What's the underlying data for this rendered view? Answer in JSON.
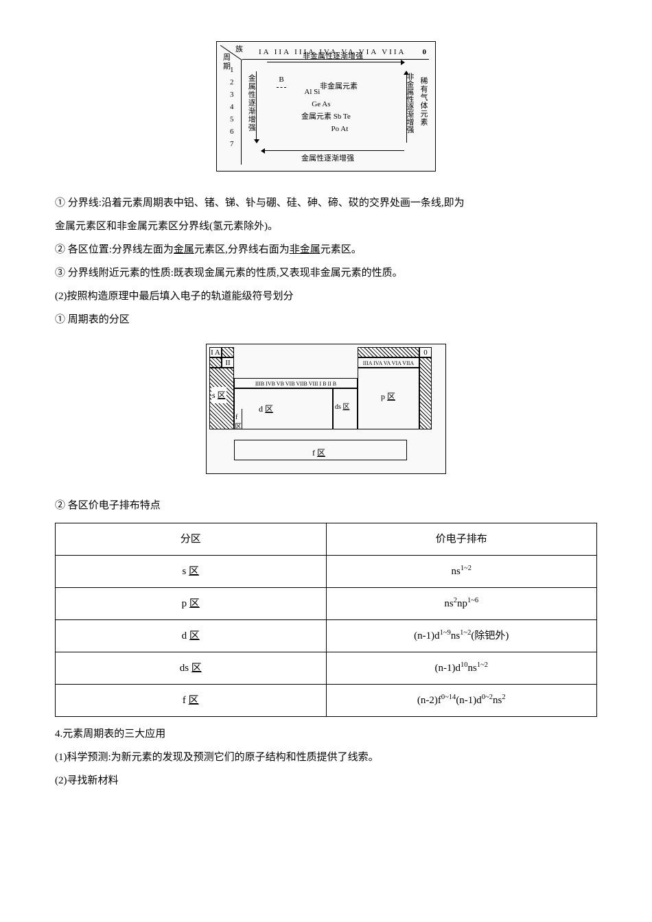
{
  "diagram1": {
    "corner_top": "族",
    "corner_bottom": "周期",
    "groups_row": "IA IIA IIIA IVA VA VIA VIIA",
    "zero": "0",
    "top_label": "非金属性逐渐增强",
    "bottom_label": "金属性逐渐增强",
    "left_col": "金属性逐渐增强",
    "right_col": "非金属性逐渐增强",
    "noble": "稀有气体元素",
    "nonmetal_region": "非金属元素",
    "metal_region": "金属元素",
    "periods": [
      "1",
      "2",
      "3",
      "4",
      "5",
      "6",
      "7"
    ],
    "stair": [
      "B",
      "Al   Si",
      "Ge   As",
      "Sb   Te",
      "Po   At"
    ]
  },
  "text": {
    "p1a": "① 分界线:沿着元素周期表中铝、锗、锑、钋与硼、硅、砷、碲、砹的交界处画一条线,即为",
    "p1b": "金属元素区和非金属元素区分界线(氢元素除外)。",
    "p2a": "② 各区位置:分界线左面为",
    "p2u1": "金属",
    "p2b": "元素区,分界线右面为",
    "p2u2": "非金属",
    "p2c": "元素区。",
    "p3": "③ 分界线附近元素的性质:既表现金属元素的性质,又表现非金属元素的性质。",
    "p4": "(2)按照构造原理中最后填入电子的轨道能级符号划分",
    "p5": "① 周期表的分区"
  },
  "diagram2": {
    "ia": "I A",
    "iia": "II A",
    "dgroups": "IIIB IVB VB VIB VIIB      VIII      I B II B",
    "pgroups": "IIIA IVA VA VIA VIIA",
    "zero": "0",
    "s": "s",
    "s_zone": "区",
    "d": "d",
    "d_zone": "区",
    "ds": "ds",
    "ds_zone": "区",
    "p": "p",
    "p_zone": "区",
    "f": "f",
    "f_zone": "区"
  },
  "text2": {
    "p6": "② 各区价电子排布特点"
  },
  "table": {
    "h1": "分区",
    "h2": "价电子排布",
    "rows": [
      {
        "zone": "s",
        "zone_suffix": "区",
        "config": "ns<sup>1~2</sup>"
      },
      {
        "zone": "p",
        "zone_suffix": "区",
        "config": "ns<sup>2</sup>np<sup>1~6</sup>"
      },
      {
        "zone": "d",
        "zone_suffix": "区",
        "config": "(n-1)d<sup>1~9</sup>ns<sup>1~2</sup>(除钯外)"
      },
      {
        "zone": "ds",
        "zone_suffix": "区",
        "config": "(n-1)d<sup>10</sup>ns<sup>1~2</sup>"
      },
      {
        "zone": "f",
        "zone_suffix": "区",
        "config": "(n-2)f<sup>0~14</sup>(n-1)d<sup>0~2</sup>ns<sup>2</sup>"
      }
    ]
  },
  "text3": {
    "p7": "4.元素周期表的三大应用",
    "p8": "(1)科学预测:为新元素的发现及预测它们的原子结构和性质提供了线索。",
    "p9": "(2)寻找新材料"
  }
}
